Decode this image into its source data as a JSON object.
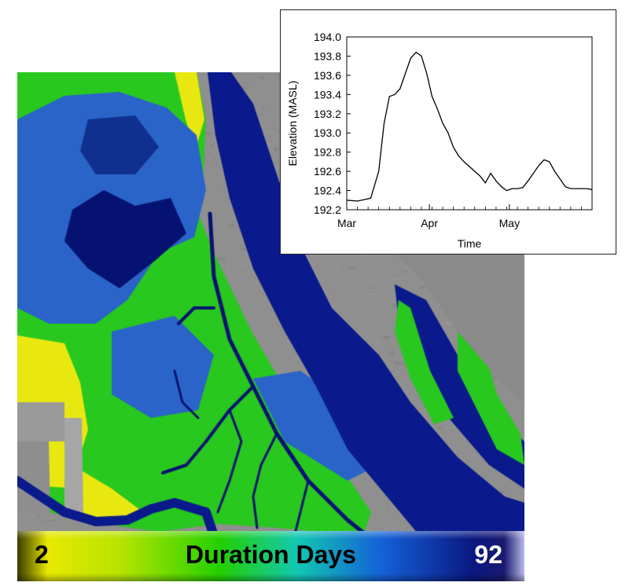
{
  "map": {
    "colors": {
      "background": "#8f8f8f",
      "river": "#0a1a8c",
      "deep_water": "#061272",
      "marsh_blue": "#2a64c8",
      "marsh_green": "#28c81e",
      "high_ground": "#e8e810"
    },
    "legend": {
      "min_label": "2",
      "title": "Duration Days",
      "max_label": "92"
    }
  },
  "chart_data": {
    "type": "line",
    "title": "",
    "xlabel": "Time",
    "ylabel": "Elevation (MASL)",
    "ylim": [
      192.2,
      194.0
    ],
    "xlim": [
      "Mar 1",
      "Jun 1"
    ],
    "x_ticks": [
      "Mar",
      "Apr",
      "May"
    ],
    "y_ticks": [
      "194.0",
      "193.8",
      "193.6",
      "193.4",
      "193.2",
      "193.0",
      "192.8",
      "192.6",
      "192.4",
      "192.2"
    ],
    "grid": false,
    "line_color": "#000000",
    "series": [
      {
        "x": [
          "Mar 1",
          "Mar 5",
          "Mar 10",
          "Mar 13",
          "Mar 15",
          "Mar 17",
          "Mar 19",
          "Mar 21",
          "Mar 23",
          "Mar 25",
          "Mar 27",
          "Mar 29",
          "Mar 31",
          "Apr 2",
          "Apr 4",
          "Apr 6",
          "Apr 8",
          "Apr 10",
          "Apr 12",
          "Apr 14",
          "Apr 16",
          "Apr 18",
          "Apr 20",
          "Apr 22",
          "Apr 24",
          "Apr 26",
          "Apr 28",
          "Apr 30",
          "May 2",
          "May 4",
          "May 6",
          "May 8",
          "May 10",
          "May 12",
          "May 14",
          "May 16",
          "May 18",
          "May 20",
          "May 22",
          "May 24",
          "May 26",
          "May 28",
          "May 30",
          "Jun 1"
        ],
        "y": [
          192.3,
          192.29,
          192.32,
          192.6,
          193.1,
          193.38,
          193.4,
          193.46,
          193.62,
          193.78,
          193.84,
          193.8,
          193.62,
          193.38,
          193.25,
          193.1,
          193.0,
          192.85,
          192.76,
          192.7,
          192.65,
          192.6,
          192.55,
          192.48,
          192.58,
          192.5,
          192.44,
          192.4,
          192.42,
          192.42,
          192.43,
          192.5,
          192.58,
          192.66,
          192.72,
          192.7,
          192.6,
          192.52,
          192.44,
          192.42,
          192.42,
          192.42,
          192.42,
          192.41
        ]
      }
    ]
  }
}
